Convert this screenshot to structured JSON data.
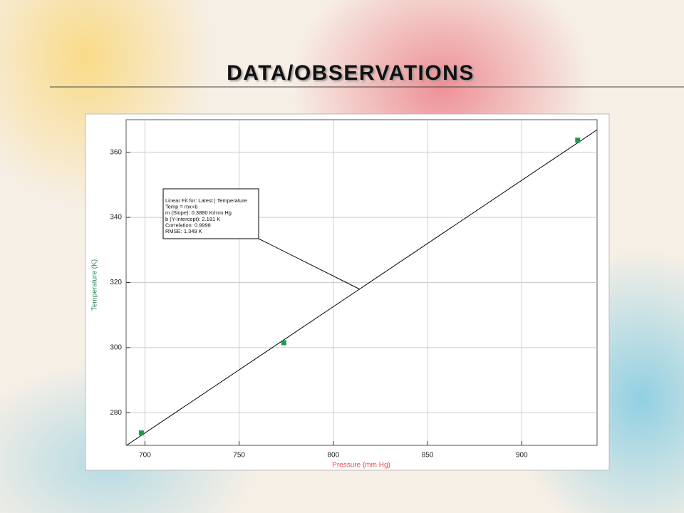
{
  "slide": {
    "title": "DATA/OBSERVATIONS"
  },
  "chart_data": {
    "type": "scatter",
    "x_label": "Pressure (mm Hg)",
    "y_label": "Temperature (K)",
    "x": [
      698.1,
      773.7,
      929.7
    ],
    "values": [
      273.8,
      301.5,
      363.7
    ],
    "color": "#1a9c4a",
    "xlim": [
      690,
      940
    ],
    "ylim": [
      270,
      370
    ],
    "xticks": [
      700,
      750,
      800,
      850,
      900
    ],
    "yticks": [
      280,
      300,
      320,
      340,
      360
    ],
    "grid": true,
    "fit": {
      "slope": 0.388,
      "intercept": 2.181,
      "color": "#000000",
      "annotation": [
        "Linear Fit for: Latest | Temperature",
        "Temp = mx+b",
        "m (Slope): 0.3880 K/mm Hg",
        "b (Y-Intercept): 2.181 K",
        "Correlation: 0.9998",
        "RMSE: 1.349 K"
      ]
    }
  }
}
